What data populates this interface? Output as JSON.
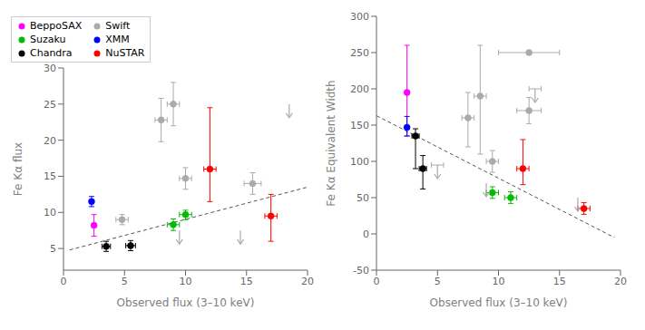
{
  "chart_data": [
    {
      "type": "scatter",
      "x_label": "Observed flux (3–10 keV)",
      "y_label": "Fe Kα flux",
      "xlim": [
        0,
        20
      ],
      "ylim": [
        2,
        30
      ],
      "xticks": [
        0,
        5,
        10,
        15,
        20
      ],
      "yticks": [
        5,
        10,
        15,
        20,
        25,
        30
      ],
      "legend": "upper left",
      "dashed_line": {
        "x": [
          0.5,
          20
        ],
        "y": [
          4.8,
          13.5
        ],
        "color": "#555555",
        "line_style": "dashed"
      },
      "series": [
        {
          "name": "BeppoSAX",
          "color": "#ff00ff",
          "x": [
            2.5
          ],
          "values": [
            8.2
          ],
          "xerr": [
            0.0
          ],
          "yerr_lo": [
            1.5
          ],
          "yerr_hi": [
            1.5
          ],
          "uplim": [
            false
          ]
        },
        {
          "name": "Suzaku",
          "color": "#00bb00",
          "x": [
            9.0,
            10.0
          ],
          "values": [
            8.3,
            9.7
          ],
          "xerr": [
            0.5,
            0.5
          ],
          "yerr_lo": [
            0.8,
            0.7
          ],
          "yerr_hi": [
            0.8,
            0.6
          ],
          "uplim": [
            false,
            false
          ]
        },
        {
          "name": "Chandra",
          "color": "#000000",
          "x": [
            3.5,
            5.5
          ],
          "values": [
            5.3,
            5.4
          ],
          "xerr": [
            0.35,
            0.4
          ],
          "yerr_lo": [
            0.7,
            0.7
          ],
          "yerr_hi": [
            0.7,
            0.7
          ],
          "uplim": [
            false,
            false
          ]
        },
        {
          "name": "Swift",
          "color": "#aaaaaa",
          "x": [
            4.8,
            8.0,
            9.0,
            10.0,
            9.5,
            14.5,
            15.5,
            18.5
          ],
          "values": [
            9.0,
            22.8,
            25.0,
            14.7,
            7.5,
            7.5,
            14.0,
            25.0
          ],
          "xerr": [
            0.5,
            0.5,
            0.5,
            0.5,
            0.0,
            0.0,
            0.7,
            0.0
          ],
          "yerr_lo": [
            0.7,
            3.0,
            3.0,
            1.5,
            0.0,
            0.0,
            1.5,
            0.0
          ],
          "yerr_hi": [
            0.7,
            3.0,
            3.0,
            1.5,
            0.0,
            0.0,
            1.5,
            0.0
          ],
          "uplim": [
            false,
            false,
            false,
            false,
            true,
            true,
            false,
            true
          ]
        },
        {
          "name": "XMM",
          "color": "#0000ff",
          "x": [
            2.3
          ],
          "values": [
            11.5
          ],
          "xerr": [
            0.0
          ],
          "yerr_lo": [
            0.7
          ],
          "yerr_hi": [
            0.7
          ],
          "uplim": [
            false
          ]
        },
        {
          "name": "NuSTAR",
          "color": "#ff0000",
          "x": [
            12.0,
            17.0
          ],
          "values": [
            16.0,
            9.5
          ],
          "xerr": [
            0.5,
            0.5
          ],
          "yerr_lo": [
            4.5,
            3.5
          ],
          "yerr_hi": [
            8.5,
            3.0
          ],
          "uplim": [
            false,
            false
          ]
        }
      ]
    },
    {
      "type": "scatter",
      "x_label": "Observed flux (3–10 keV)",
      "y_label": "Fe Kα Equivalent Width",
      "xlim": [
        0,
        20
      ],
      "ylim": [
        -50,
        300
      ],
      "xticks": [
        0,
        5,
        10,
        15,
        20
      ],
      "yticks": [
        -50,
        0,
        50,
        100,
        150,
        200,
        250,
        300
      ],
      "dashed_line": {
        "x": [
          0,
          19.5
        ],
        "y": [
          163,
          -5
        ],
        "color": "#555555",
        "line_style": "dashed"
      },
      "series": [
        {
          "name": "BeppoSAX",
          "color": "#ff00ff",
          "x": [
            2.5
          ],
          "values": [
            195
          ],
          "xerr": [
            0.0
          ],
          "yerr_lo": [
            60
          ],
          "yerr_hi": [
            65
          ],
          "uplim": [
            false
          ]
        },
        {
          "name": "Suzaku",
          "color": "#00bb00",
          "x": [
            9.5,
            11.0
          ],
          "values": [
            57,
            50
          ],
          "xerr": [
            0.5,
            0.5
          ],
          "yerr_lo": [
            8,
            8
          ],
          "yerr_hi": [
            8,
            8
          ],
          "uplim": [
            false,
            false
          ]
        },
        {
          "name": "Chandra",
          "color": "#000000",
          "x": [
            3.2,
            3.8
          ],
          "values": [
            135,
            90
          ],
          "xerr": [
            0.3,
            0.3
          ],
          "yerr_lo": [
            45,
            28
          ],
          "yerr_hi": [
            10,
            18
          ],
          "uplim": [
            false,
            false
          ]
        },
        {
          "name": "Swift",
          "color": "#aaaaaa",
          "x": [
            5.0,
            7.5,
            8.5,
            9.5,
            9.0,
            12.5,
            12.5,
            13.0,
            16.5
          ],
          "values": [
            95,
            160,
            190,
            100,
            70,
            250,
            170,
            200,
            50
          ],
          "xerr": [
            0.5,
            0.5,
            0.5,
            0.5,
            0.0,
            2.5,
            1.0,
            0.5,
            0.0
          ],
          "yerr_lo": [
            0.0,
            40,
            80,
            15,
            0.0,
            0.0,
            18,
            0.0,
            0.0
          ],
          "yerr_hi": [
            0.0,
            35,
            70,
            15,
            0.0,
            0.0,
            18,
            0.0,
            0.0
          ],
          "uplim": [
            true,
            false,
            false,
            false,
            true,
            false,
            false,
            true,
            true
          ]
        },
        {
          "name": "XMM",
          "color": "#0000ff",
          "x": [
            2.5
          ],
          "values": [
            147
          ],
          "xerr": [
            0.0
          ],
          "yerr_lo": [
            12
          ],
          "yerr_hi": [
            15
          ],
          "uplim": [
            false
          ]
        },
        {
          "name": "NuSTAR",
          "color": "#ff0000",
          "x": [
            12.0,
            17.0
          ],
          "values": [
            90,
            35
          ],
          "xerr": [
            0.5,
            0.5
          ],
          "yerr_lo": [
            22,
            8
          ],
          "yerr_hi": [
            40,
            8
          ],
          "uplim": [
            false,
            false
          ]
        }
      ]
    }
  ]
}
